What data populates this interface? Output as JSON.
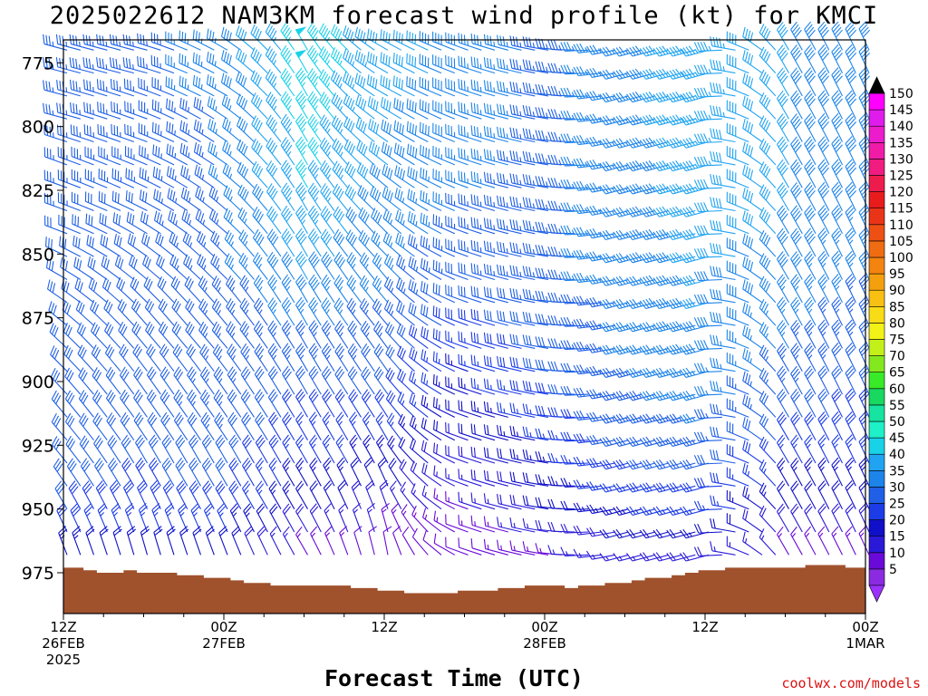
{
  "title": "2025022612 NAM3KM forecast wind profile (kt) for KMCI",
  "credit": "coolwx.com/models",
  "chart_data": {
    "type": "wind-barb time-height profile",
    "xlabel": "Forecast Time (UTC)",
    "ylabel": "",
    "y_axis": {
      "reversed": true,
      "ylim": [
        991,
        766
      ],
      "ticks": [
        775,
        800,
        825,
        850,
        875,
        900,
        925,
        950,
        975
      ]
    },
    "x_axis": {
      "xlim_hours": [
        0,
        60
      ],
      "tick_labels": [
        {
          "hour": 0,
          "lines": [
            "12Z",
            "26FEB",
            "2025"
          ]
        },
        {
          "hour": 12,
          "lines": [
            "00Z",
            "27FEB"
          ]
        },
        {
          "hour": 24,
          "lines": [
            "12Z"
          ]
        },
        {
          "hour": 36,
          "lines": [
            "00Z",
            "28FEB"
          ]
        },
        {
          "hour": 48,
          "lines": [
            "12Z"
          ]
        },
        {
          "hour": 60,
          "lines": [
            "00Z",
            "1MAR"
          ]
        }
      ]
    },
    "surface_pressure": {
      "hours": [
        0,
        1,
        2,
        3,
        4,
        5,
        6,
        7,
        8,
        9,
        10,
        11,
        12,
        13,
        14,
        15,
        16,
        17,
        18,
        19,
        20,
        21,
        22,
        23,
        24,
        25,
        26,
        27,
        28,
        29,
        30,
        31,
        32,
        33,
        34,
        35,
        36,
        37,
        38,
        39,
        40,
        41,
        42,
        43,
        44,
        45,
        46,
        47,
        48,
        49,
        50,
        51,
        52,
        53,
        54,
        55,
        56,
        57,
        58,
        59,
        60
      ],
      "pressure": [
        973,
        973,
        974,
        975,
        975,
        974,
        975,
        975,
        975,
        976,
        976,
        977,
        977,
        978,
        979,
        979,
        980,
        980,
        980,
        980,
        980,
        980,
        981,
        981,
        982,
        982,
        983,
        983,
        983,
        983,
        982,
        982,
        982,
        981,
        981,
        980,
        980,
        980,
        981,
        980,
        980,
        979,
        979,
        978,
        977,
        977,
        976,
        975,
        974,
        974,
        973,
        973,
        973,
        973,
        973,
        973,
        972,
        972,
        972,
        973,
        973
      ],
      "color": "#a0522d"
    },
    "colorbar": {
      "levels": [
        5,
        10,
        15,
        20,
        25,
        30,
        35,
        40,
        45,
        50,
        55,
        60,
        65,
        70,
        75,
        80,
        85,
        90,
        95,
        100,
        105,
        110,
        115,
        120,
        125,
        130,
        135,
        140,
        145,
        150
      ],
      "labels": [
        "5",
        "10",
        "15",
        "20",
        "25",
        "30",
        "35",
        "40",
        "45",
        "50",
        "55",
        "60",
        "65",
        "70",
        "75",
        "80",
        "85",
        "90",
        "95",
        "100",
        "105",
        "110",
        "115",
        "120",
        "125",
        "130",
        "135",
        "140",
        "145",
        "150"
      ],
      "colors": [
        "#8a2be2",
        "#6a0ad8",
        "#2a1ad8",
        "#1010c8",
        "#1c3ce8",
        "#1f60e6",
        "#1d84ea",
        "#20a4f2",
        "#18d2e8",
        "#1ef0c8",
        "#16e4a0",
        "#18d860",
        "#38ea28",
        "#84e81e",
        "#c4f01a",
        "#f2f218",
        "#f8dc16",
        "#f8c012",
        "#f4a00e",
        "#f48410",
        "#f06c12",
        "#ee5014",
        "#ea3418",
        "#e81c1c",
        "#ee1c4c",
        "#f01c80",
        "#f01ca8",
        "#ea1ccc",
        "#e01cec",
        "#ff00ff"
      ],
      "under_color": "#9b30ff",
      "over_color": "#000000"
    },
    "levels_hpa": [
      770,
      780,
      790,
      800,
      810,
      820,
      830,
      840,
      850,
      860,
      870,
      880,
      890,
      900,
      910,
      920,
      930,
      940,
      950,
      960,
      970,
      980
    ],
    "columns": [
      {
        "hour": 0,
        "dir": [
          285,
          285,
          285,
          285,
          290,
          290,
          290,
          290,
          295,
          300,
          305,
          310,
          315,
          315,
          320,
          320,
          320,
          325,
          330,
          335,
          340,
          345
        ],
        "speed": [
          33,
          33,
          33,
          33,
          33,
          33,
          33,
          32,
          31,
          30,
          30,
          30,
          30,
          31,
          32,
          32,
          32,
          31,
          30,
          28,
          22,
          18
        ]
      },
      {
        "hour": 6,
        "dir": [
          285,
          285,
          290,
          290,
          290,
          295,
          295,
          300,
          305,
          310,
          315,
          320,
          320,
          325,
          325,
          325,
          330,
          330,
          335,
          340,
          345,
          350
        ],
        "speed": [
          34,
          34,
          34,
          33,
          33,
          33,
          32,
          32,
          31,
          31,
          31,
          31,
          31,
          31,
          32,
          32,
          31,
          30,
          28,
          25,
          20,
          16
        ]
      },
      {
        "hour": 12,
        "dir": [
          300,
          300,
          300,
          305,
          305,
          305,
          310,
          310,
          315,
          315,
          320,
          320,
          320,
          325,
          325,
          325,
          330,
          330,
          330,
          335,
          340,
          345
        ],
        "speed": [
          36,
          36,
          36,
          35,
          35,
          35,
          35,
          34,
          34,
          34,
          33,
          33,
          33,
          33,
          33,
          33,
          32,
          31,
          29,
          26,
          20,
          14
        ]
      },
      {
        "hour": 18,
        "dir": [
          330,
          330,
          330,
          330,
          330,
          330,
          330,
          330,
          330,
          330,
          330,
          330,
          330,
          330,
          330,
          330,
          330,
          330,
          330,
          330,
          330,
          330
        ],
        "speed": [
          48,
          48,
          47,
          47,
          46,
          46,
          45,
          44,
          42,
          40,
          38,
          36,
          34,
          32,
          30,
          28,
          26,
          24,
          22,
          18,
          14,
          10
        ]
      },
      {
        "hour": 24,
        "dir": [
          300,
          300,
          300,
          305,
          305,
          310,
          310,
          315,
          315,
          320,
          320,
          320,
          325,
          325,
          325,
          330,
          330,
          335,
          340,
          345,
          350,
          355
        ],
        "speed": [
          42,
          42,
          41,
          41,
          40,
          40,
          39,
          38,
          37,
          36,
          35,
          34,
          33,
          32,
          30,
          28,
          25,
          22,
          18,
          14,
          10,
          8
        ]
      },
      {
        "hour": 30,
        "dir": [
          290,
          290,
          290,
          290,
          290,
          290,
          290,
          290,
          290,
          290,
          290,
          290,
          290,
          290,
          290,
          290,
          290,
          290,
          290,
          290,
          290,
          290
        ],
        "speed": [
          38,
          38,
          38,
          37,
          37,
          36,
          35,
          34,
          33,
          32,
          30,
          28,
          26,
          24,
          22,
          20,
          18,
          16,
          14,
          12,
          10,
          8
        ]
      },
      {
        "hour": 36,
        "dir": [
          280,
          280,
          280,
          280,
          280,
          280,
          280,
          280,
          280,
          280,
          280,
          280,
          280,
          280,
          280,
          280,
          280,
          280,
          280,
          280,
          280,
          280
        ],
        "speed": [
          34,
          34,
          34,
          34,
          34,
          34,
          34,
          34,
          34,
          34,
          33,
          32,
          31,
          30,
          28,
          26,
          24,
          22,
          20,
          17,
          14,
          10
        ]
      },
      {
        "hour": 42,
        "dir": [
          255,
          255,
          255,
          255,
          255,
          255,
          255,
          255,
          255,
          255,
          255,
          255,
          255,
          255,
          255,
          255,
          255,
          255,
          255,
          255,
          255,
          255
        ],
        "speed": [
          36,
          36,
          36,
          36,
          36,
          36,
          36,
          36,
          36,
          36,
          35,
          35,
          35,
          34,
          33,
          32,
          30,
          27,
          24,
          20,
          16,
          12
        ]
      },
      {
        "hour": 48,
        "dir": [
          255,
          255,
          255,
          255,
          255,
          255,
          255,
          255,
          255,
          255,
          255,
          255,
          255,
          255,
          255,
          255,
          255,
          255,
          255,
          255,
          255,
          255
        ],
        "speed": [
          44,
          44,
          44,
          44,
          43,
          43,
          42,
          42,
          41,
          40,
          40,
          39,
          38,
          37,
          36,
          34,
          32,
          30,
          27,
          22,
          18,
          14
        ]
      },
      {
        "hour": 54,
        "dir": [
          330,
          330,
          330,
          330,
          330,
          330,
          330,
          330,
          330,
          330,
          330,
          330,
          330,
          330,
          330,
          330,
          330,
          330,
          330,
          330,
          330,
          330
        ],
        "speed": [
          40,
          40,
          40,
          40,
          40,
          40,
          40,
          40,
          39,
          38,
          37,
          36,
          35,
          34,
          32,
          30,
          28,
          25,
          22,
          18,
          14,
          10
        ]
      },
      {
        "hour": 60,
        "dir": [
          335,
          335,
          335,
          335,
          335,
          335,
          335,
          335,
          335,
          335,
          335,
          335,
          335,
          335,
          335,
          335,
          335,
          335,
          335,
          335,
          335,
          335
        ],
        "speed": [
          38,
          38,
          38,
          38,
          38,
          38,
          37,
          37,
          36,
          35,
          34,
          33,
          32,
          31,
          30,
          28,
          26,
          24,
          21,
          18,
          14,
          10
        ]
      }
    ]
  }
}
